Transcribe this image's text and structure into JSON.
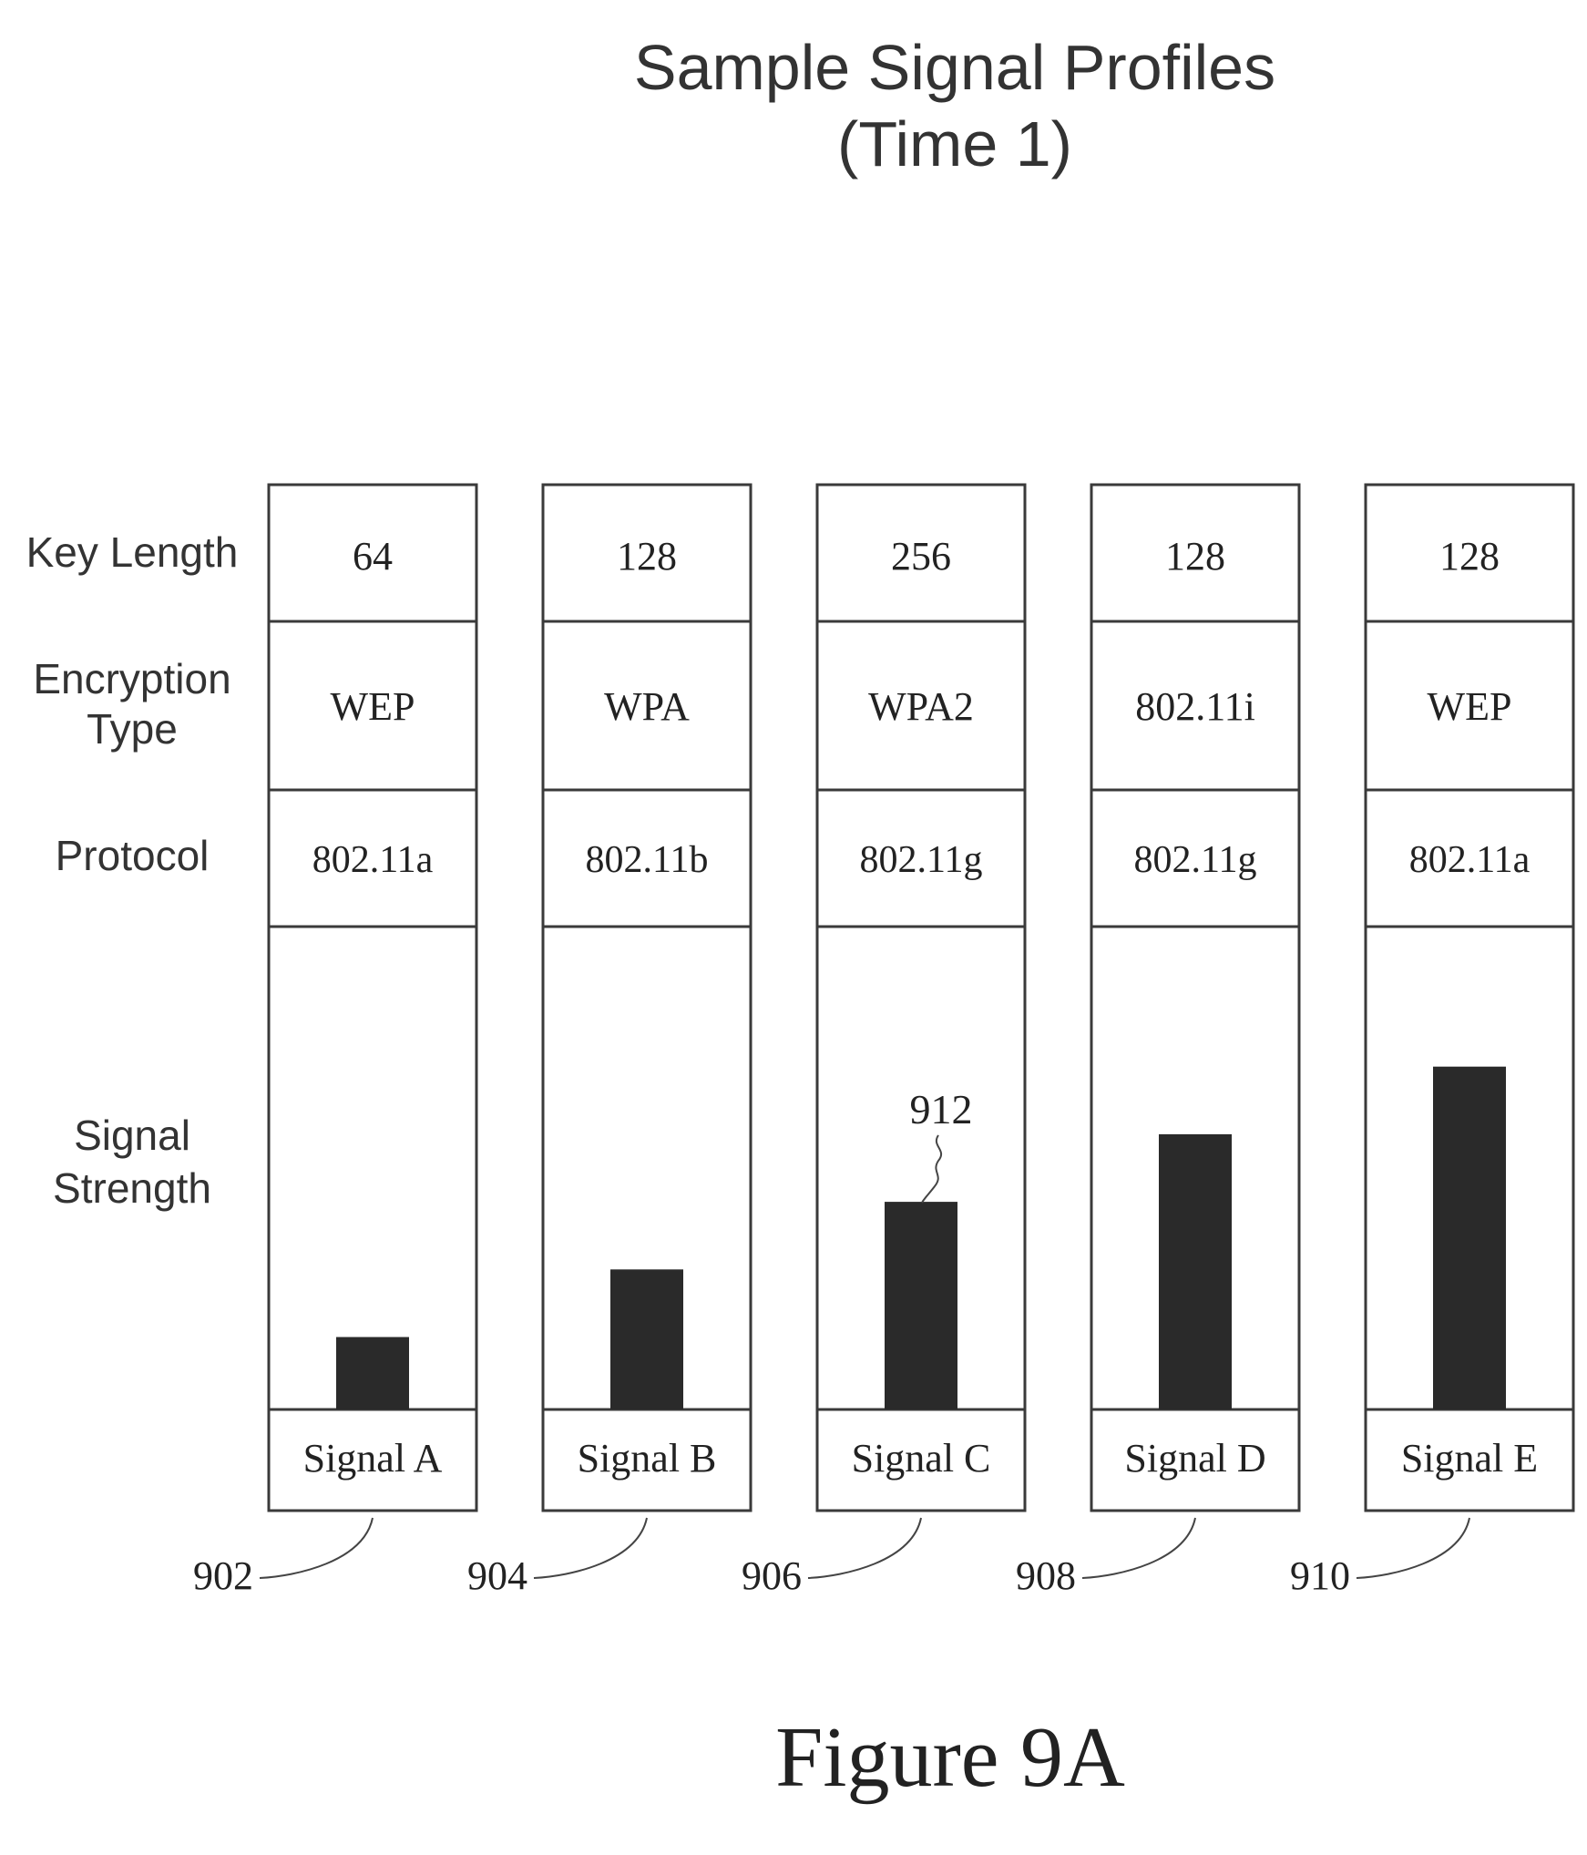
{
  "title": {
    "line1": "Sample Signal Profiles",
    "line2": "(Time 1)"
  },
  "row_labels": {
    "key_length": "Key Length",
    "encryption_line1": "Encryption",
    "encryption_line2": "Type",
    "protocol": "Protocol",
    "strength_line1": "Signal",
    "strength_line2": "Strength"
  },
  "profiles": [
    {
      "key_length": "64",
      "encryption": "WEP",
      "protocol": "802.11a",
      "name": "Signal A",
      "ref": "902",
      "strength": 0.15
    },
    {
      "key_length": "128",
      "encryption": "WPA",
      "protocol": "802.11b",
      "name": "Signal B",
      "ref": "904",
      "strength": 0.29
    },
    {
      "key_length": "256",
      "encryption": "WPA2",
      "protocol": "802.11g",
      "name": "Signal C",
      "ref": "906",
      "strength": 0.43
    },
    {
      "key_length": "128",
      "encryption": "802.11i",
      "protocol": "802.11g",
      "name": "Signal D",
      "ref": "908",
      "strength": 0.57
    },
    {
      "key_length": "128",
      "encryption": "WEP",
      "protocol": "802.11a",
      "name": "Signal E",
      "ref": "910",
      "strength": 0.71
    }
  ],
  "bar_callout": "912",
  "figure_label": "Figure 9A",
  "colors": {
    "stroke": "#3a3a3a",
    "bar": "#2a2a2a",
    "text": "#222222"
  }
}
